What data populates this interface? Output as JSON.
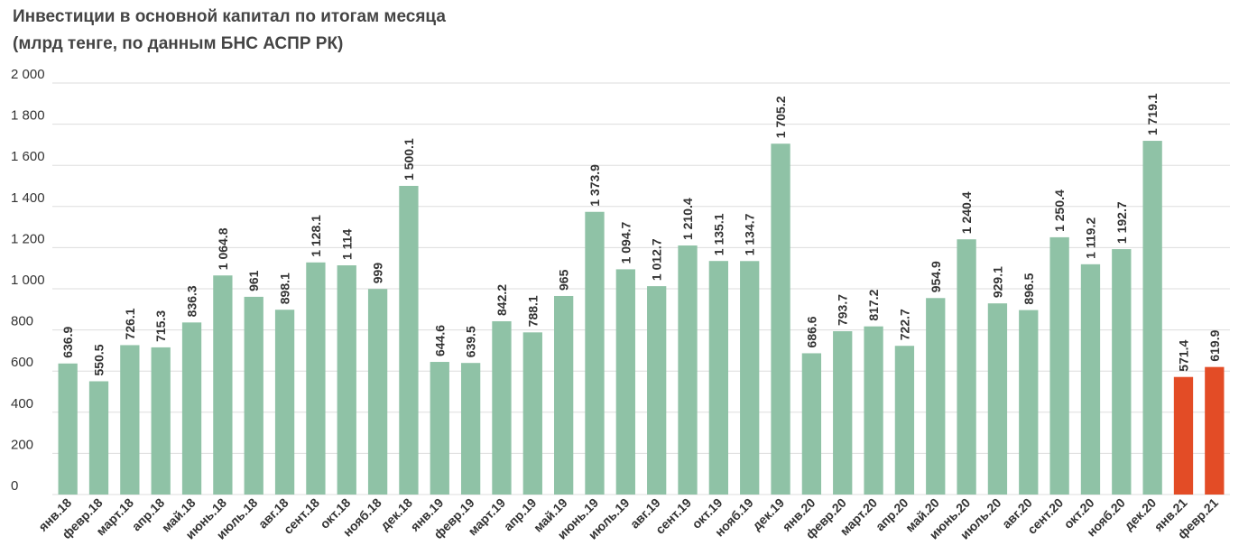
{
  "chart_data": {
    "type": "bar",
    "title": "Инвестиции в основной капитал по итогам месяца",
    "subtitle": "(млрд тенге, по данным БНС АСПР РК)",
    "xlabel": "",
    "ylabel": "",
    "ylim": [
      0,
      2000
    ],
    "yticks": [
      "0",
      "200",
      "400",
      "600",
      "800",
      "1 000",
      "1 200",
      "1 400",
      "1 600",
      "1 800",
      "2 000"
    ],
    "grid": true,
    "colors": {
      "default": "#8fc2a6",
      "highlight": "#e34c26",
      "grid": "#dddddd",
      "text": "#333333"
    },
    "categories": [
      "янв.18",
      "февр.18",
      "март.18",
      "апр.18",
      "май.18",
      "июнь.18",
      "июль.18",
      "авг.18",
      "сент.18",
      "окт.18",
      "нояб.18",
      "дек.18",
      "янв.19",
      "февр.19",
      "март.19",
      "апр.19",
      "май.19",
      "июнь.19",
      "июль.19",
      "авг.19",
      "сент.19",
      "окт.19",
      "нояб.19",
      "дек.19",
      "янв.20",
      "февр.20",
      "март.20",
      "апр.20",
      "май.20",
      "июнь.20",
      "июль.20",
      "авг.20",
      "сент.20",
      "окт.20",
      "нояб.20",
      "дек.20",
      "янв.21",
      "февр.21"
    ],
    "values": [
      636.9,
      550.5,
      726.1,
      715.3,
      836.3,
      1064.8,
      961,
      898.1,
      1128.1,
      1114,
      999,
      1500.1,
      644.6,
      639.5,
      842.2,
      788.1,
      965,
      1373.9,
      1094.7,
      1012.7,
      1210.4,
      1135.1,
      1134.7,
      1705.2,
      686.6,
      793.7,
      817.2,
      722.7,
      954.9,
      1240.4,
      929.1,
      896.5,
      1250.4,
      1119.2,
      1192.7,
      1719.1,
      571.4,
      619.9
    ],
    "value_labels": [
      "636.9",
      "550.5",
      "726.1",
      "715.3",
      "836.3",
      "1 064.8",
      "961",
      "898.1",
      "1 128.1",
      "1 114",
      "999",
      "1 500.1",
      "644.6",
      "639.5",
      "842.2",
      "788.1",
      "965",
      "1 373.9",
      "1 094.7",
      "1 012.7",
      "1 210.4",
      "1 135.1",
      "1 134.7",
      "1 705.2",
      "686.6",
      "793.7",
      "817.2",
      "722.7",
      "954.9",
      "1 240.4",
      "929.1",
      "896.5",
      "1 250.4",
      "1 119.2",
      "1 192.7",
      "1 719.1",
      "571.4",
      "619.9"
    ],
    "highlight_categories": [
      "янв.21",
      "февр.21"
    ]
  }
}
